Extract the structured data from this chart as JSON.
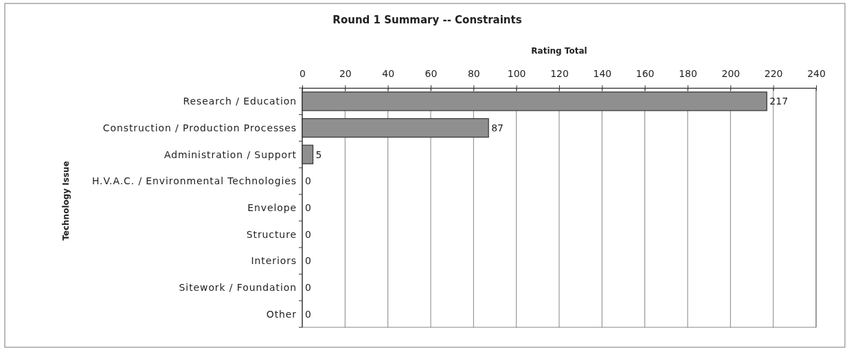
{
  "chart_data": {
    "type": "bar",
    "orientation": "horizontal",
    "title": "Round 1 Summary -- Constraints",
    "xlabel": "Rating Total",
    "ylabel": "Technology Issue",
    "categories": [
      "Research / Education",
      "Construction / Production Processes",
      "Administration / Support",
      "H.V.A.C. / Environmental Technologies",
      "Envelope",
      "Structure",
      "Interiors",
      "Sitework / Foundation",
      "Other"
    ],
    "values": [
      217,
      87,
      5,
      0,
      0,
      0,
      0,
      0,
      0
    ],
    "color": "#8f8f8f",
    "xlim": [
      0,
      240
    ],
    "xticks": [
      0,
      20,
      40,
      60,
      80,
      100,
      120,
      140,
      160,
      180,
      200,
      220,
      240
    ],
    "grid": "x",
    "data_labels": true
  }
}
